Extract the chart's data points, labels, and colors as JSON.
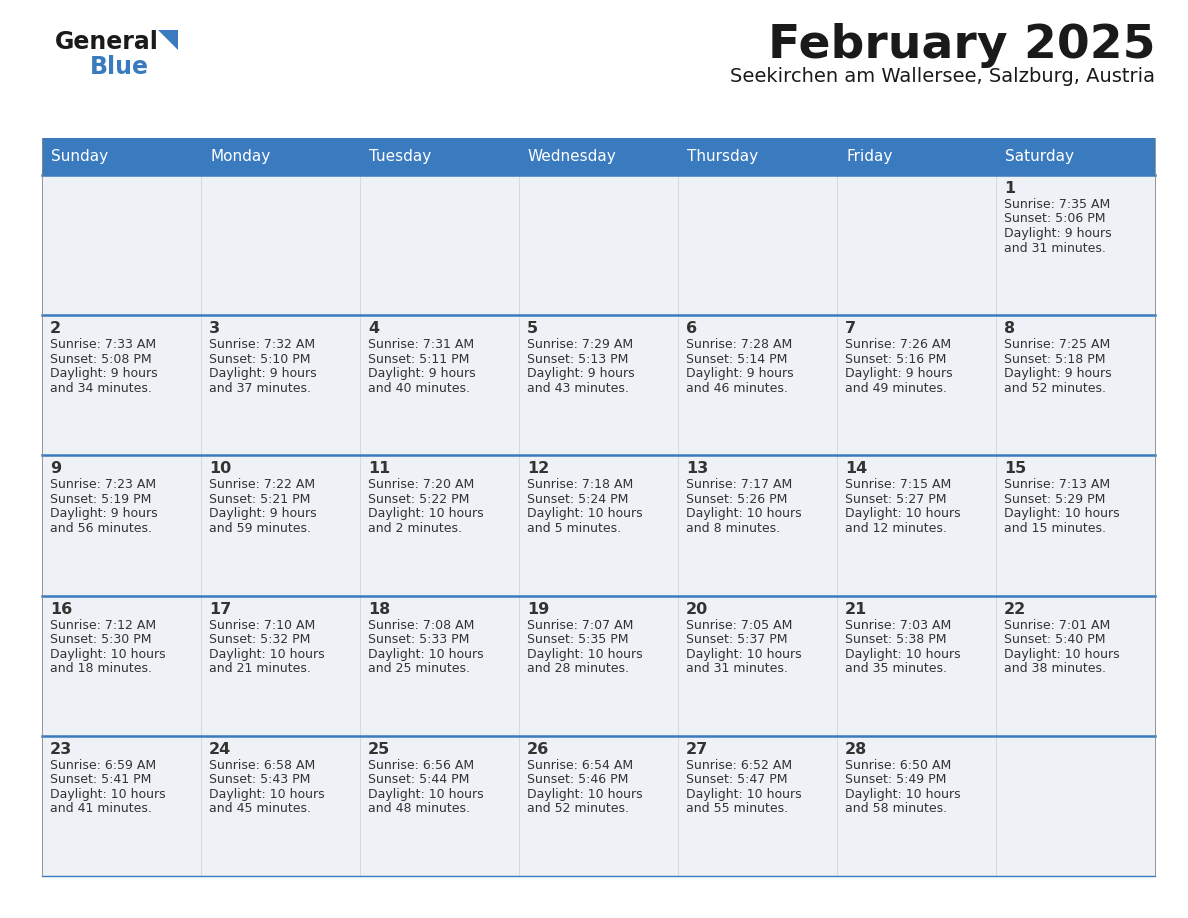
{
  "title": "February 2025",
  "subtitle": "Seekirchen am Wallersee, Salzburg, Austria",
  "days_of_week": [
    "Sunday",
    "Monday",
    "Tuesday",
    "Wednesday",
    "Thursday",
    "Friday",
    "Saturday"
  ],
  "header_bg": "#3a7abf",
  "header_text": "#ffffff",
  "cell_bg": "#eef1f5",
  "cell_border": "#aaaaaa",
  "divider_color": "#3a7abf",
  "text_color": "#333333",
  "calendar_data": [
    [
      null,
      null,
      null,
      null,
      null,
      null,
      {
        "day": "1",
        "sunrise": "7:35 AM",
        "sunset": "5:06 PM",
        "dl1": "Daylight: 9 hours",
        "dl2": "and 31 minutes."
      }
    ],
    [
      {
        "day": "2",
        "sunrise": "7:33 AM",
        "sunset": "5:08 PM",
        "dl1": "Daylight: 9 hours",
        "dl2": "and 34 minutes."
      },
      {
        "day": "3",
        "sunrise": "7:32 AM",
        "sunset": "5:10 PM",
        "dl1": "Daylight: 9 hours",
        "dl2": "and 37 minutes."
      },
      {
        "day": "4",
        "sunrise": "7:31 AM",
        "sunset": "5:11 PM",
        "dl1": "Daylight: 9 hours",
        "dl2": "and 40 minutes."
      },
      {
        "day": "5",
        "sunrise": "7:29 AM",
        "sunset": "5:13 PM",
        "dl1": "Daylight: 9 hours",
        "dl2": "and 43 minutes."
      },
      {
        "day": "6",
        "sunrise": "7:28 AM",
        "sunset": "5:14 PM",
        "dl1": "Daylight: 9 hours",
        "dl2": "and 46 minutes."
      },
      {
        "day": "7",
        "sunrise": "7:26 AM",
        "sunset": "5:16 PM",
        "dl1": "Daylight: 9 hours",
        "dl2": "and 49 minutes."
      },
      {
        "day": "8",
        "sunrise": "7:25 AM",
        "sunset": "5:18 PM",
        "dl1": "Daylight: 9 hours",
        "dl2": "and 52 minutes."
      }
    ],
    [
      {
        "day": "9",
        "sunrise": "7:23 AM",
        "sunset": "5:19 PM",
        "dl1": "Daylight: 9 hours",
        "dl2": "and 56 minutes."
      },
      {
        "day": "10",
        "sunrise": "7:22 AM",
        "sunset": "5:21 PM",
        "dl1": "Daylight: 9 hours",
        "dl2": "and 59 minutes."
      },
      {
        "day": "11",
        "sunrise": "7:20 AM",
        "sunset": "5:22 PM",
        "dl1": "Daylight: 10 hours",
        "dl2": "and 2 minutes."
      },
      {
        "day": "12",
        "sunrise": "7:18 AM",
        "sunset": "5:24 PM",
        "dl1": "Daylight: 10 hours",
        "dl2": "and 5 minutes."
      },
      {
        "day": "13",
        "sunrise": "7:17 AM",
        "sunset": "5:26 PM",
        "dl1": "Daylight: 10 hours",
        "dl2": "and 8 minutes."
      },
      {
        "day": "14",
        "sunrise": "7:15 AM",
        "sunset": "5:27 PM",
        "dl1": "Daylight: 10 hours",
        "dl2": "and 12 minutes."
      },
      {
        "day": "15",
        "sunrise": "7:13 AM",
        "sunset": "5:29 PM",
        "dl1": "Daylight: 10 hours",
        "dl2": "and 15 minutes."
      }
    ],
    [
      {
        "day": "16",
        "sunrise": "7:12 AM",
        "sunset": "5:30 PM",
        "dl1": "Daylight: 10 hours",
        "dl2": "and 18 minutes."
      },
      {
        "day": "17",
        "sunrise": "7:10 AM",
        "sunset": "5:32 PM",
        "dl1": "Daylight: 10 hours",
        "dl2": "and 21 minutes."
      },
      {
        "day": "18",
        "sunrise": "7:08 AM",
        "sunset": "5:33 PM",
        "dl1": "Daylight: 10 hours",
        "dl2": "and 25 minutes."
      },
      {
        "day": "19",
        "sunrise": "7:07 AM",
        "sunset": "5:35 PM",
        "dl1": "Daylight: 10 hours",
        "dl2": "and 28 minutes."
      },
      {
        "day": "20",
        "sunrise": "7:05 AM",
        "sunset": "5:37 PM",
        "dl1": "Daylight: 10 hours",
        "dl2": "and 31 minutes."
      },
      {
        "day": "21",
        "sunrise": "7:03 AM",
        "sunset": "5:38 PM",
        "dl1": "Daylight: 10 hours",
        "dl2": "and 35 minutes."
      },
      {
        "day": "22",
        "sunrise": "7:01 AM",
        "sunset": "5:40 PM",
        "dl1": "Daylight: 10 hours",
        "dl2": "and 38 minutes."
      }
    ],
    [
      {
        "day": "23",
        "sunrise": "6:59 AM",
        "sunset": "5:41 PM",
        "dl1": "Daylight: 10 hours",
        "dl2": "and 41 minutes."
      },
      {
        "day": "24",
        "sunrise": "6:58 AM",
        "sunset": "5:43 PM",
        "dl1": "Daylight: 10 hours",
        "dl2": "and 45 minutes."
      },
      {
        "day": "25",
        "sunrise": "6:56 AM",
        "sunset": "5:44 PM",
        "dl1": "Daylight: 10 hours",
        "dl2": "and 48 minutes."
      },
      {
        "day": "26",
        "sunrise": "6:54 AM",
        "sunset": "5:46 PM",
        "dl1": "Daylight: 10 hours",
        "dl2": "and 52 minutes."
      },
      {
        "day": "27",
        "sunrise": "6:52 AM",
        "sunset": "5:47 PM",
        "dl1": "Daylight: 10 hours",
        "dl2": "and 55 minutes."
      },
      {
        "day": "28",
        "sunrise": "6:50 AM",
        "sunset": "5:49 PM",
        "dl1": "Daylight: 10 hours",
        "dl2": "and 58 minutes."
      },
      null
    ]
  ]
}
